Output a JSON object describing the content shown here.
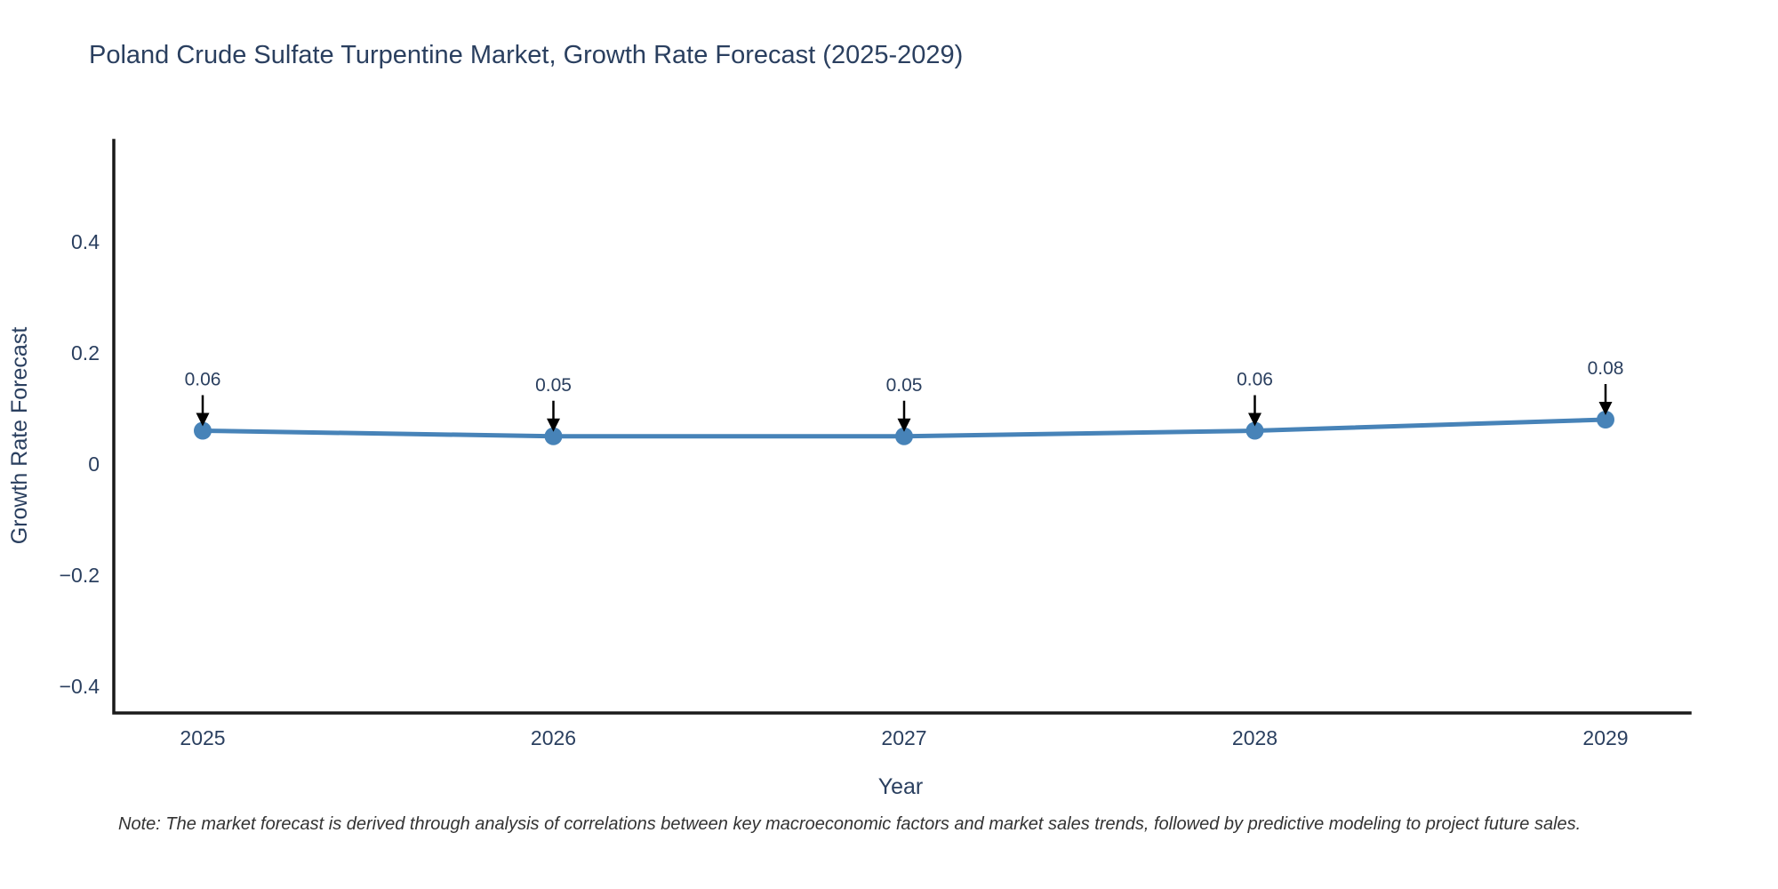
{
  "title": "Poland Crude Sulfate Turpentine Market, Growth Rate Forecast (2025-2029)",
  "note": "Note: The market forecast is derived through analysis of correlations between key macroeconomic factors and market sales trends, followed by predictive modeling to project future sales.",
  "chart_data": {
    "type": "line",
    "title": "Poland Crude Sulfate Turpentine Market, Growth Rate Forecast (2025-2029)",
    "xlabel": "Year",
    "ylabel": "Growth Rate Forecast",
    "x": [
      2025,
      2026,
      2027,
      2028,
      2029
    ],
    "y": [
      0.06,
      0.05,
      0.05,
      0.06,
      0.08
    ],
    "point_labels": [
      "0.06",
      "0.05",
      "0.05",
      "0.06",
      "0.08"
    ],
    "xtick_labels": [
      "2025",
      "2026",
      "2027",
      "2028",
      "2029"
    ],
    "yticks": [
      0.4,
      0.2,
      0,
      -0.2,
      -0.4
    ],
    "ytick_labels": [
      "0.4",
      "0.2",
      "0",
      "−0.2",
      "−0.4"
    ],
    "ylim": [
      -0.45,
      0.58
    ],
    "grid": false,
    "legend": false,
    "annotation_arrows": true,
    "colors": {
      "line": "#4783b8",
      "marker": "#4783b8",
      "axis": "#1a1a1a",
      "tick_text": "#2a3f5f",
      "title_text": "#2a3f5f",
      "annotation_text": "#2a3f5f",
      "arrow": "#000000",
      "note_text": "#333333",
      "background": "#ffffff"
    }
  }
}
